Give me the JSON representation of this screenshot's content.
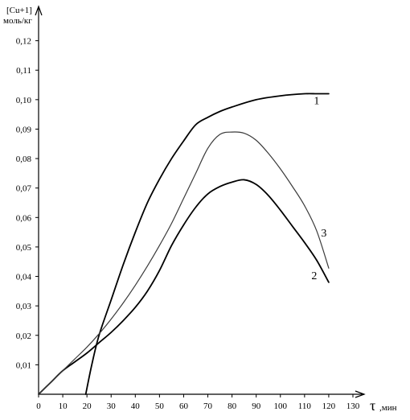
{
  "chart_data": {
    "type": "line",
    "title": "",
    "xlabel_symbol": "τ",
    "xlabel_unit": ",мин",
    "ylabel_top": "[Cu+1]",
    "ylabel_unit": "моль/кг",
    "xlim": [
      0,
      130
    ],
    "ylim": [
      0,
      0.13
    ],
    "grid": false,
    "xticks": [
      0,
      10,
      20,
      30,
      40,
      50,
      60,
      70,
      80,
      90,
      100,
      110,
      120,
      130
    ],
    "xtick_labels": [
      "0",
      "10",
      "20",
      "30",
      "40",
      "50",
      "60",
      "70",
      "80",
      "90",
      "100",
      "110",
      "120",
      "130"
    ],
    "yticks": [
      0.01,
      0.02,
      0.03,
      0.04,
      0.05,
      0.06,
      0.07,
      0.08,
      0.09,
      0.1,
      0.11,
      0.12
    ],
    "ytick_labels": [
      "0,01",
      "0,02",
      "0,03",
      "0,04",
      "0,05",
      "0,06",
      "0,07",
      "0,08",
      "0,09",
      "0,10",
      "0,11",
      "0,12"
    ],
    "series": [
      {
        "name": "1",
        "color": "#000000",
        "x": [
          19.5,
          22,
          25,
          30,
          35,
          40,
          45,
          50,
          55,
          60,
          65,
          70,
          75,
          80,
          90,
          100,
          110,
          115,
          120
        ],
        "y": [
          0,
          0.01,
          0.02,
          0.032,
          0.044,
          0.055,
          0.065,
          0.073,
          0.08,
          0.086,
          0.0915,
          0.094,
          0.096,
          0.0975,
          0.1,
          0.1013,
          0.102,
          0.102,
          0.102
        ]
      },
      {
        "name": "2",
        "color": "#000000",
        "x": [
          0,
          5,
          10,
          15,
          20,
          25,
          30,
          35,
          40,
          45,
          50,
          55,
          60,
          65,
          70,
          75,
          80,
          85,
          90,
          95,
          100,
          105,
          110,
          115,
          120
        ],
        "y": [
          0,
          0.004,
          0.008,
          0.011,
          0.014,
          0.0175,
          0.021,
          0.025,
          0.0295,
          0.035,
          0.042,
          0.0505,
          0.0575,
          0.0635,
          0.068,
          0.0705,
          0.072,
          0.0728,
          0.0712,
          0.0675,
          0.0625,
          0.057,
          0.0515,
          0.0455,
          0.038
        ]
      },
      {
        "name": "3",
        "color": "#3a3a3a",
        "x": [
          0,
          5,
          10,
          15,
          20,
          25,
          30,
          35,
          40,
          45,
          50,
          55,
          60,
          65,
          70,
          75,
          80,
          85,
          90,
          95,
          100,
          105,
          110,
          115,
          120
        ],
        "y": [
          0,
          0.004,
          0.008,
          0.012,
          0.016,
          0.0205,
          0.0255,
          0.031,
          0.037,
          0.0435,
          0.0505,
          0.058,
          0.0665,
          0.075,
          0.0835,
          0.0882,
          0.089,
          0.0886,
          0.0862,
          0.0818,
          0.0765,
          0.0705,
          0.064,
          0.0555,
          0.0428
        ]
      }
    ],
    "curve_labels": [
      {
        "text": "1",
        "x": 115,
        "y": 0.0985
      },
      {
        "text": "2",
        "x": 114,
        "y": 0.039
      },
      {
        "text": "3",
        "x": 118,
        "y": 0.0535
      }
    ]
  }
}
